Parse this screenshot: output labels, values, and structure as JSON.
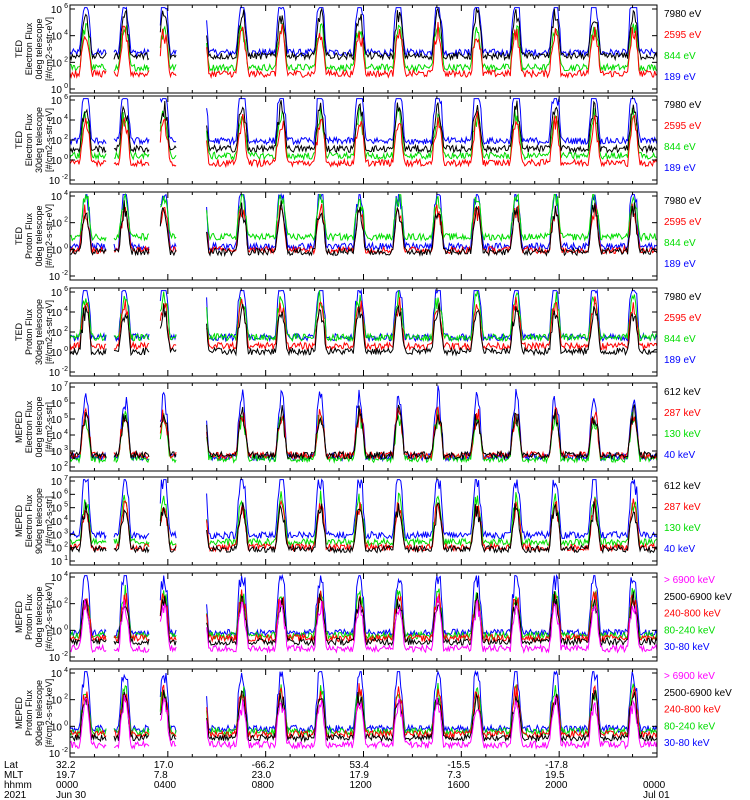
{
  "panels": [
    {
      "ylabel": [
        "TED",
        "Electron Flux",
        "0deg telescope",
        "[#/cm2-s-str-eV]"
      ],
      "yticks": [
        {
          "base": "10",
          "exp": "6"
        },
        {
          "base": "10",
          "exp": "4"
        },
        {
          "base": "10",
          "exp": "2"
        },
        {
          "base": "10",
          "exp": "0"
        }
      ],
      "legend": [
        {
          "text": "7980 eV",
          "color": "#000000"
        },
        {
          "text": "2595 eV",
          "color": "#ff0000"
        },
        {
          "text": "844 eV",
          "color": "#00dd00"
        },
        {
          "text": "189 eV",
          "color": "#0000ff"
        }
      ]
    },
    {
      "ylabel": [
        "TED",
        "Electron Flux",
        "30deg telescope",
        "[#/cm2-s-str-eV]"
      ],
      "yticks": [
        {
          "base": "10",
          "exp": "6"
        },
        {
          "base": "10",
          "exp": "4"
        },
        {
          "base": "10",
          "exp": "2"
        },
        {
          "base": "10",
          "exp": "0"
        },
        {
          "base": "10",
          "exp": "-2"
        }
      ],
      "legend": [
        {
          "text": "7980 eV",
          "color": "#000000"
        },
        {
          "text": "2595 eV",
          "color": "#ff0000"
        },
        {
          "text": "844 eV",
          "color": "#00dd00"
        },
        {
          "text": "189 eV",
          "color": "#0000ff"
        }
      ]
    },
    {
      "ylabel": [
        "TED",
        "Proton Flux",
        "0deg telescope",
        "[#/cm2-s-str-eV]"
      ],
      "yticks": [
        {
          "base": "10",
          "exp": "4"
        },
        {
          "base": "10",
          "exp": "2"
        },
        {
          "base": "10",
          "exp": "0"
        },
        {
          "base": "10",
          "exp": "-2"
        }
      ],
      "legend": [
        {
          "text": "7980 eV",
          "color": "#000000"
        },
        {
          "text": "2595 eV",
          "color": "#ff0000"
        },
        {
          "text": "844 eV",
          "color": "#00dd00"
        },
        {
          "text": "189 eV",
          "color": "#0000ff"
        }
      ]
    },
    {
      "ylabel": [
        "TED",
        "Proton Flux",
        "30deg telescope",
        "[#/cm2-s-str-eV]"
      ],
      "yticks": [
        {
          "base": "10",
          "exp": "6"
        },
        {
          "base": "10",
          "exp": "4"
        },
        {
          "base": "10",
          "exp": "2"
        },
        {
          "base": "10",
          "exp": "0"
        },
        {
          "base": "10",
          "exp": "-2"
        }
      ],
      "legend": [
        {
          "text": "7980 eV",
          "color": "#000000"
        },
        {
          "text": "2595 eV",
          "color": "#ff0000"
        },
        {
          "text": "844 eV",
          "color": "#00dd00"
        },
        {
          "text": "189 eV",
          "color": "#0000ff"
        }
      ]
    },
    {
      "ylabel": [
        "MEPED",
        "Electron Flux",
        "0deg telescope",
        "[#/cm2-s-str]"
      ],
      "yticks": [
        {
          "base": "10",
          "exp": "7"
        },
        {
          "base": "10",
          "exp": "6"
        },
        {
          "base": "10",
          "exp": "5"
        },
        {
          "base": "10",
          "exp": "4"
        },
        {
          "base": "10",
          "exp": "3"
        },
        {
          "base": "10",
          "exp": "2"
        }
      ],
      "legend": [
        {
          "text": "612 keV",
          "color": "#000000"
        },
        {
          "text": "287 keV",
          "color": "#ff0000"
        },
        {
          "text": "130 keV",
          "color": "#00dd00"
        },
        {
          "text": "40 keV",
          "color": "#0000ff"
        }
      ]
    },
    {
      "ylabel": [
        "MEPED",
        "Electron Flux",
        "90deg telescope",
        "[#/cm2-s-str]"
      ],
      "yticks": [
        {
          "base": "10",
          "exp": "7"
        },
        {
          "base": "10",
          "exp": "6"
        },
        {
          "base": "10",
          "exp": "5"
        },
        {
          "base": "10",
          "exp": "4"
        },
        {
          "base": "10",
          "exp": "3"
        },
        {
          "base": "10",
          "exp": "2"
        },
        {
          "base": "10",
          "exp": "1"
        }
      ],
      "legend": [
        {
          "text": "612 keV",
          "color": "#000000"
        },
        {
          "text": "287 keV",
          "color": "#ff0000"
        },
        {
          "text": "130 keV",
          "color": "#00dd00"
        },
        {
          "text": "40 keV",
          "color": "#0000ff"
        }
      ]
    },
    {
      "ylabel": [
        "MEPED",
        "Proton Flux",
        "0deg telescope",
        "[#/cm2-s-str-keV]"
      ],
      "yticks": [
        {
          "base": "10",
          "exp": "4"
        },
        {
          "base": "10",
          "exp": "2"
        },
        {
          "base": "10",
          "exp": "0"
        },
        {
          "base": "10",
          "exp": "-2"
        }
      ],
      "legend": [
        {
          "text": "> 6900 keV",
          "color": "#ff00ff"
        },
        {
          "text": "2500-6900 keV",
          "color": "#000000"
        },
        {
          "text": "240-800 keV",
          "color": "#ff0000"
        },
        {
          "text": "80-240 keV",
          "color": "#00dd00"
        },
        {
          "text": "30-80 keV",
          "color": "#0000ff"
        }
      ]
    },
    {
      "ylabel": [
        "MEPED",
        "Proton Flux",
        "90deg telescope",
        "[#/cm2-s-str-keV]"
      ],
      "yticks": [
        {
          "base": "10",
          "exp": "4"
        },
        {
          "base": "10",
          "exp": "2"
        },
        {
          "base": "10",
          "exp": "0"
        },
        {
          "base": "10",
          "exp": "-2"
        }
      ],
      "legend": [
        {
          "text": "> 6900 keV",
          "color": "#ff00ff"
        },
        {
          "text": "2500-6900 keV",
          "color": "#000000"
        },
        {
          "text": "240-800 keV",
          "color": "#ff0000"
        },
        {
          "text": "80-240 keV",
          "color": "#00dd00"
        },
        {
          "text": "30-80 keV",
          "color": "#0000ff"
        }
      ]
    }
  ],
  "xaxis": {
    "row_labels": [
      "Lat",
      "MLT",
      "hhmm",
      "2021"
    ],
    "ticks": [
      {
        "lat": "32.2",
        "mlt": "19.7",
        "hhmm": "0000",
        "date": "Jun 30"
      },
      {
        "lat": "17.0",
        "mlt": "7.8",
        "hhmm": "0400",
        "date": ""
      },
      {
        "lat": "-66.2",
        "mlt": "23.0",
        "hhmm": "0800",
        "date": ""
      },
      {
        "lat": "53.4",
        "mlt": "17.9",
        "hhmm": "1200",
        "date": ""
      },
      {
        "lat": "-15.5",
        "mlt": "7.3",
        "hhmm": "1600",
        "date": ""
      },
      {
        "lat": "-17.8",
        "mlt": "19.5",
        "hhmm": "2000",
        "date": ""
      },
      {
        "lat": "",
        "mlt": "",
        "hhmm": "0000",
        "date": "Jul 01"
      }
    ]
  },
  "chart_data": {
    "type": "line",
    "x": [
      "0000",
      "0400",
      "0800",
      "1200",
      "1600",
      "2000",
      "0000"
    ],
    "y_scale": "log",
    "panels": [
      {
        "ylabel": "TED Electron Flux 0deg telescope [#/cm2-s-str-eV]",
        "ylim": [
          "1e0",
          "1e6"
        ],
        "series": [
          {
            "name": "7980 eV"
          },
          {
            "name": "2595 eV"
          },
          {
            "name": "844 eV"
          },
          {
            "name": "189 eV"
          }
        ]
      },
      {
        "ylabel": "TED Electron Flux 30deg telescope [#/cm2-s-str-eV]",
        "ylim": [
          "1e-2",
          "1e6"
        ],
        "series": [
          {
            "name": "7980 eV"
          },
          {
            "name": "2595 eV"
          },
          {
            "name": "844 eV"
          },
          {
            "name": "189 eV"
          }
        ]
      },
      {
        "ylabel": "TED Proton Flux 0deg telescope [#/cm2-s-str-eV]",
        "ylim": [
          "1e-2",
          "1e4"
        ],
        "series": [
          {
            "name": "7980 eV"
          },
          {
            "name": "2595 eV"
          },
          {
            "name": "844 eV"
          },
          {
            "name": "189 eV"
          }
        ]
      },
      {
        "ylabel": "TED Proton Flux 30deg telescope [#/cm2-s-str-eV]",
        "ylim": [
          "1e-2",
          "1e6"
        ],
        "series": [
          {
            "name": "7980 eV"
          },
          {
            "name": "2595 eV"
          },
          {
            "name": "844 eV"
          },
          {
            "name": "189 eV"
          }
        ]
      },
      {
        "ylabel": "MEPED Electron Flux 0deg telescope [#/cm2-s-str]",
        "ylim": [
          "1e2",
          "1e7"
        ],
        "series": [
          {
            "name": "612 keV"
          },
          {
            "name": "287 keV"
          },
          {
            "name": "130 keV"
          },
          {
            "name": "40 keV"
          }
        ]
      },
      {
        "ylabel": "MEPED Electron Flux 90deg telescope [#/cm2-s-str]",
        "ylim": [
          "1e1",
          "1e7"
        ],
        "series": [
          {
            "name": "612 keV"
          },
          {
            "name": "287 keV"
          },
          {
            "name": "130 keV"
          },
          {
            "name": "40 keV"
          }
        ]
      },
      {
        "ylabel": "MEPED Proton Flux 0deg telescope [#/cm2-s-str-keV]",
        "ylim": [
          "1e-2",
          "1e4"
        ],
        "series": [
          {
            "name": "> 6900 keV"
          },
          {
            "name": "2500-6900 keV"
          },
          {
            "name": "240-800 keV"
          },
          {
            "name": "80-240 keV"
          },
          {
            "name": "30-80 keV"
          }
        ]
      },
      {
        "ylabel": "MEPED Proton Flux 90deg telescope [#/cm2-s-str-keV]",
        "ylim": [
          "1e-2",
          "1e4"
        ],
        "series": [
          {
            "name": "> 6900 keV"
          },
          {
            "name": "2500-6900 keV"
          },
          {
            "name": "240-800 keV"
          },
          {
            "name": "80-240 keV"
          },
          {
            "name": "30-80 keV"
          }
        ]
      }
    ]
  }
}
